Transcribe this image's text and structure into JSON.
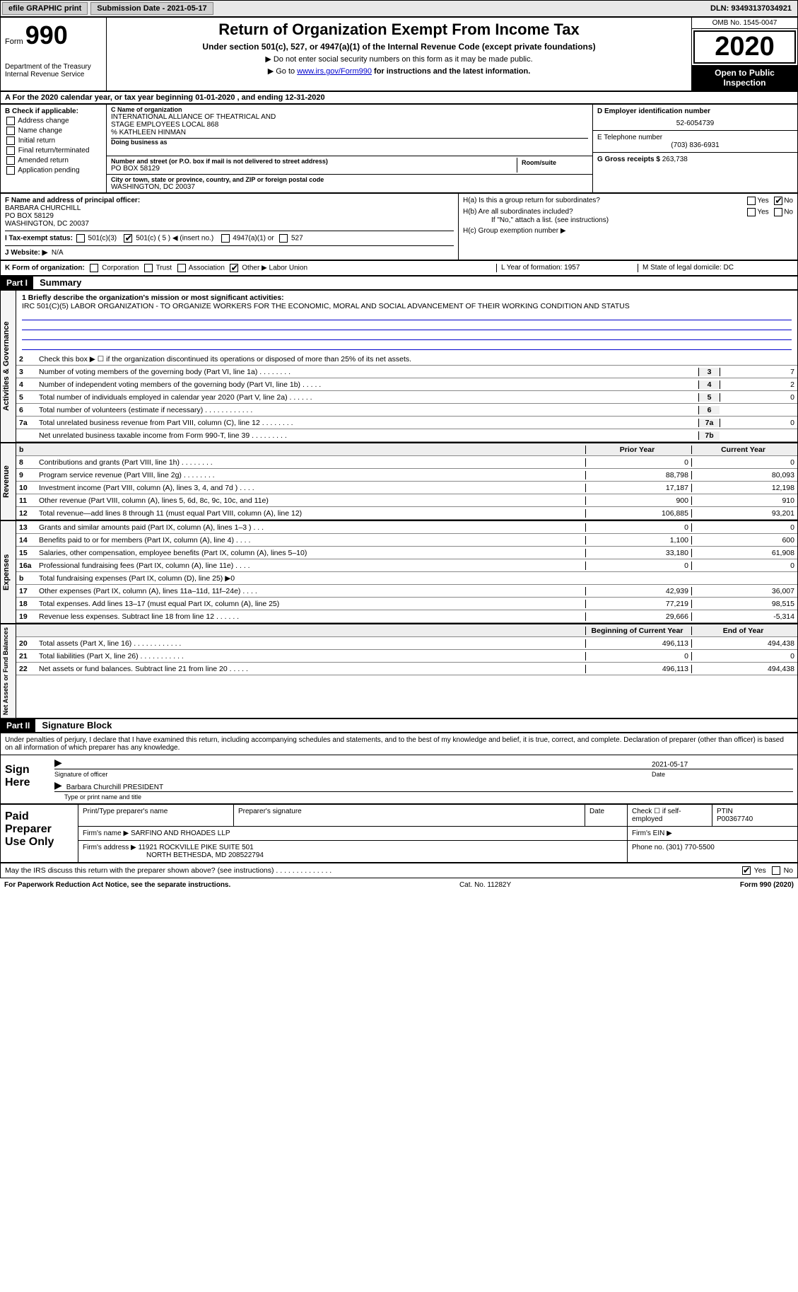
{
  "topbar": {
    "efile": "efile GRAPHIC print",
    "submission_label": "Submission Date - 2021-05-17",
    "dln": "DLN: 93493137034921"
  },
  "header": {
    "form_prefix": "Form",
    "form_number": "990",
    "dept": "Department of the Treasury\nInternal Revenue Service",
    "title": "Return of Organization Exempt From Income Tax",
    "subtitle": "Under section 501(c), 527, or 4947(a)(1) of the Internal Revenue Code (except private foundations)",
    "note1": "▶ Do not enter social security numbers on this form as it may be made public.",
    "note2_pre": "▶ Go to ",
    "note2_link": "www.irs.gov/Form990",
    "note2_post": " for instructions and the latest information.",
    "omb": "OMB No. 1545-0047",
    "year": "2020",
    "open": "Open to Public Inspection"
  },
  "row_a": "A For the 2020 calendar year, or tax year beginning 01-01-2020   , and ending 12-31-2020",
  "box_b": {
    "title": "B Check if applicable:",
    "items": [
      "Address change",
      "Name change",
      "Initial return",
      "Final return/terminated",
      "Amended return",
      "Application pending"
    ]
  },
  "box_c": {
    "label_c": "C Name of organization",
    "org1": "INTERNATIONAL ALLIANCE OF THEATRICAL AND",
    "org2": "STAGE EMPLOYEES LOCAL 868",
    "org3": "% KATHLEEN HINMAN",
    "dba_lbl": "Doing business as",
    "addr_lbl": "Number and street (or P.O. box if mail is not delivered to street address)",
    "room_lbl": "Room/suite",
    "addr": "PO BOX 58129",
    "city_lbl": "City or town, state or province, country, and ZIP or foreign postal code",
    "city": "WASHINGTON, DC  20037"
  },
  "box_d": {
    "label": "D Employer identification number",
    "value": "52-6054739"
  },
  "box_e": {
    "label": "E Telephone number",
    "value": "(703) 836-6931"
  },
  "box_g": {
    "label": "G Gross receipts $",
    "value": "263,738"
  },
  "box_f": {
    "label": "F Name and address of principal officer:",
    "name": "BARBARA CHURCHILL",
    "addr1": "PO BOX 58129",
    "addr2": "WASHINGTON, DC  20037"
  },
  "box_i": {
    "label": "I   Tax-exempt status:",
    "opt1": "501(c)(3)",
    "opt2_pre": "501(c) ( 5 ) ◀ (insert no.)",
    "opt3": "4947(a)(1) or",
    "opt4": "527"
  },
  "box_j": {
    "label": "J   Website: ▶",
    "value": "N/A"
  },
  "box_h": {
    "a_label": "H(a)  Is this a group return for subordinates?",
    "b_label": "H(b)  Are all subordinates included?",
    "b_note": "If \"No,\" attach a list. (see instructions)",
    "c_label": "H(c)  Group exemption number ▶",
    "yes": "Yes",
    "no": "No"
  },
  "row_k": {
    "label": "K Form of organization:",
    "opts": [
      "Corporation",
      "Trust",
      "Association",
      "Other ▶"
    ],
    "other_val": "Labor Union",
    "l": "L Year of formation: 1957",
    "m": "M State of legal domicile: DC"
  },
  "part1": {
    "num": "Part I",
    "title": "Summary"
  },
  "summary": {
    "mission_lbl": "1   Briefly describe the organization's mission or most significant activities:",
    "mission": "IRC 501(C)(5) LABOR ORGANIZATION - TO ORGANIZE WORKERS FOR THE ECONOMIC, MORAL AND SOCIAL ADVANCEMENT OF THEIR WORKING CONDITION AND STATUS",
    "line2": "Check this box ▶ ☐  if the organization discontinued its operations or disposed of more than 25% of its net assets.",
    "gov_lines": [
      {
        "n": "3",
        "d": "Number of voting members of the governing body (Part VI, line 1a)   .    .    .    .    .    .    .    .",
        "b": "3",
        "v": "7"
      },
      {
        "n": "4",
        "d": "Number of independent voting members of the governing body (Part VI, line 1b)   .    .    .    .    .",
        "b": "4",
        "v": "2"
      },
      {
        "n": "5",
        "d": "Total number of individuals employed in calendar year 2020 (Part V, line 2a)   .    .    .    .    .    .",
        "b": "5",
        "v": "0"
      },
      {
        "n": "6",
        "d": "Total number of volunteers (estimate if necessary)   .    .    .    .    .    .    .    .    .    .    .    .",
        "b": "6",
        "v": ""
      },
      {
        "n": "7a",
        "d": "Total unrelated business revenue from Part VIII, column (C), line 12   .    .    .    .    .    .    .    .",
        "b": "7a",
        "v": "0"
      },
      {
        "n": "",
        "d": "Net unrelated business taxable income from Form 990-T, line 39   .    .    .    .    .    .    .    .    .",
        "b": "7b",
        "v": ""
      }
    ],
    "col_hdr_py": "Prior Year",
    "col_hdr_cy": "Current Year",
    "rev_lines": [
      {
        "n": "8",
        "d": "Contributions and grants (Part VIII, line 1h)   .    .    .    .    .    .    .    .",
        "py": "0",
        "cy": "0"
      },
      {
        "n": "9",
        "d": "Program service revenue (Part VIII, line 2g)   .    .    .    .    .    .    .    .",
        "py": "88,798",
        "cy": "80,093"
      },
      {
        "n": "10",
        "d": "Investment income (Part VIII, column (A), lines 3, 4, and 7d )   .    .    .    .",
        "py": "17,187",
        "cy": "12,198"
      },
      {
        "n": "11",
        "d": "Other revenue (Part VIII, column (A), lines 5, 6d, 8c, 9c, 10c, and 11e)",
        "py": "900",
        "cy": "910"
      },
      {
        "n": "12",
        "d": "Total revenue—add lines 8 through 11 (must equal Part VIII, column (A), line 12)",
        "py": "106,885",
        "cy": "93,201"
      }
    ],
    "exp_lines": [
      {
        "n": "13",
        "d": "Grants and similar amounts paid (Part IX, column (A), lines 1–3 )   .    .    .",
        "py": "0",
        "cy": "0"
      },
      {
        "n": "14",
        "d": "Benefits paid to or for members (Part IX, column (A), line 4)   .    .    .    .",
        "py": "1,100",
        "cy": "600"
      },
      {
        "n": "15",
        "d": "Salaries, other compensation, employee benefits (Part IX, column (A), lines 5–10)",
        "py": "33,180",
        "cy": "61,908"
      },
      {
        "n": "16a",
        "d": "Professional fundraising fees (Part IX, column (A), line 11e)   .    .    .    .",
        "py": "0",
        "cy": "0"
      },
      {
        "n": "b",
        "d": "Total fundraising expenses (Part IX, column (D), line 25) ▶0",
        "py": "",
        "cy": "",
        "shaded": true
      },
      {
        "n": "17",
        "d": "Other expenses (Part IX, column (A), lines 11a–11d, 11f–24e)   .    .    .    .",
        "py": "42,939",
        "cy": "36,007"
      },
      {
        "n": "18",
        "d": "Total expenses. Add lines 13–17 (must equal Part IX, column (A), line 25)",
        "py": "77,219",
        "cy": "98,515"
      },
      {
        "n": "19",
        "d": "Revenue less expenses. Subtract line 18 from line 12   .    .    .    .    .    .",
        "py": "29,666",
        "cy": "-5,314"
      }
    ],
    "na_hdr_py": "Beginning of Current Year",
    "na_hdr_cy": "End of Year",
    "na_lines": [
      {
        "n": "20",
        "d": "Total assets (Part X, line 16)   .    .    .    .    .    .    .    .    .    .    .    .",
        "py": "496,113",
        "cy": "494,438"
      },
      {
        "n": "21",
        "d": "Total liabilities (Part X, line 26)   .    .    .    .    .    .    .    .    .    .    .",
        "py": "0",
        "cy": "0"
      },
      {
        "n": "22",
        "d": "Net assets or fund balances. Subtract line 21 from line 20   .    .    .    .    .",
        "py": "496,113",
        "cy": "494,438"
      }
    ]
  },
  "part2": {
    "num": "Part II",
    "title": "Signature Block"
  },
  "penalty": "Under penalties of perjury, I declare that I have examined this return, including accompanying schedules and statements, and to the best of my knowledge and belief, it is true, correct, and complete. Declaration of preparer (other than officer) is based on all information of which preparer has any knowledge.",
  "sign": {
    "here": "Sign Here",
    "sig_lbl": "Signature of officer",
    "date_lbl": "Date",
    "date_val": "2021-05-17",
    "name": "Barbara Churchill PRESIDENT",
    "name_lbl": "Type or print name and title"
  },
  "paid": {
    "title": "Paid Preparer Use Only",
    "r1": {
      "c1": "Print/Type preparer's name",
      "c2": "Preparer's signature",
      "c3": "Date",
      "c4": "Check ☐ if self-employed",
      "c5": "PTIN",
      "c5v": "P00367740"
    },
    "r2": {
      "lbl": "Firm's name    ▶",
      "val": "SARFINO AND RHOADES LLP",
      "ein": "Firm's EIN ▶"
    },
    "r3": {
      "lbl": "Firm's address ▶",
      "val1": "11921 ROCKVILLE PIKE SUITE 501",
      "val2": "NORTH BETHESDA, MD  208522794",
      "phone": "Phone no. (301) 770-5500"
    }
  },
  "discuss": {
    "text": "May the IRS discuss this return with the preparer shown above? (see instructions)   .    .    .    .    .    .    .    .    .    .    .    .    .    .",
    "yes": "Yes",
    "no": "No"
  },
  "footer": {
    "left": "For Paperwork Reduction Act Notice, see the separate instructions.",
    "mid": "Cat. No. 11282Y",
    "right": "Form 990 (2020)"
  },
  "vtabs": {
    "gov": "Activities & Governance",
    "rev": "Revenue",
    "exp": "Expenses",
    "na": "Net Assets or Fund Balances"
  }
}
